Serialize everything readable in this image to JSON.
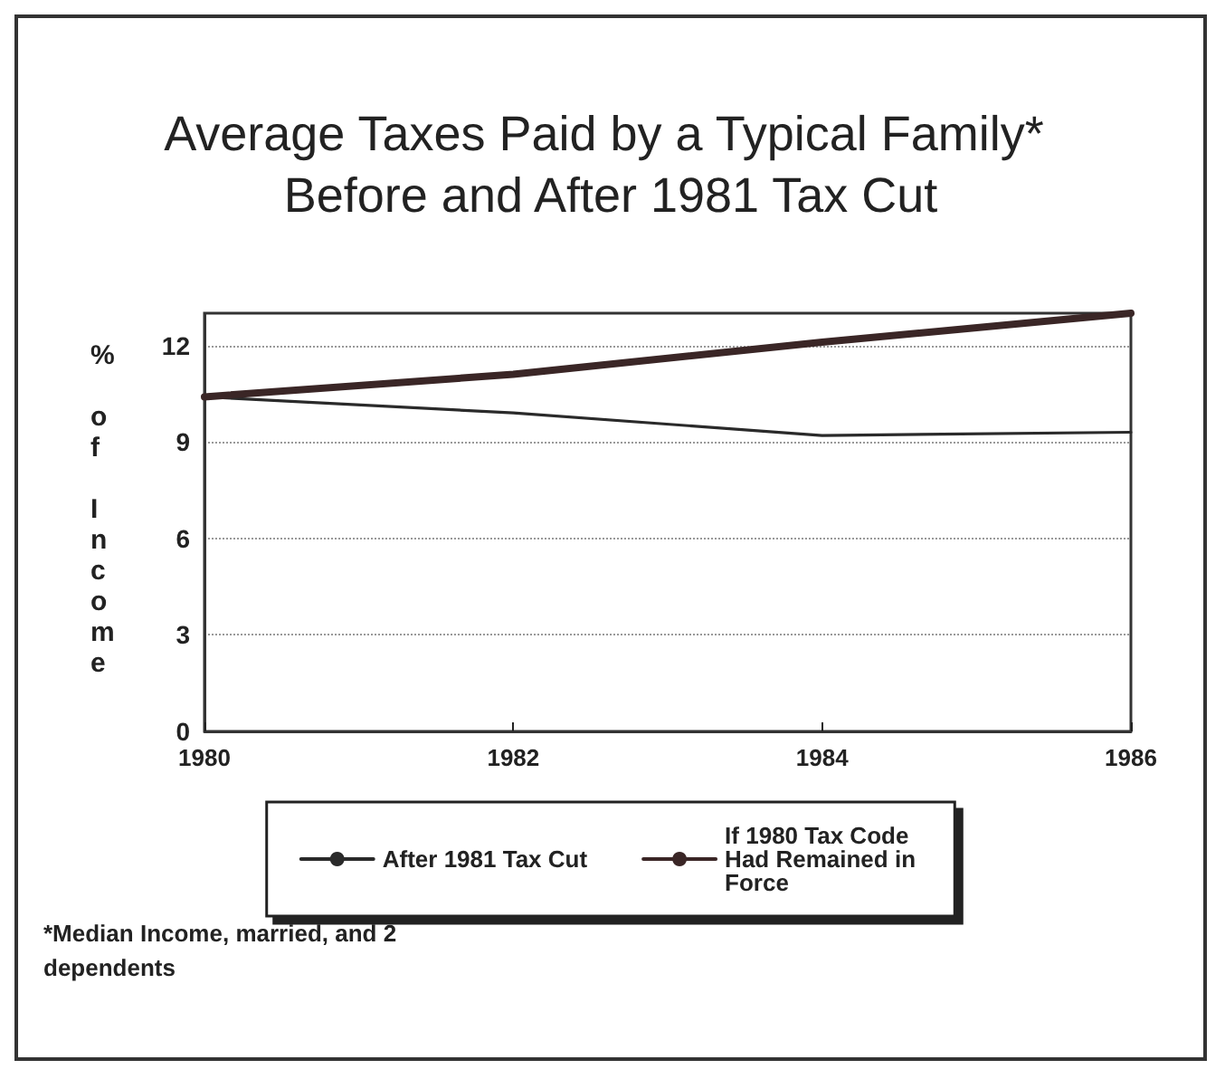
{
  "chart_data": {
    "type": "line",
    "title": "Average Taxes Paid by a Typical Family* Before and After 1981 Tax Cut",
    "ylabel": "% of Income",
    "x": [
      1980,
      1982,
      1984,
      1986
    ],
    "series": [
      {
        "name": "After 1981 Tax Cut",
        "color": "#2a2a2a",
        "values": [
          10.4,
          9.9,
          9.2,
          9.3
        ]
      },
      {
        "name": "If 1980 Tax Code Had Remained in Force",
        "color": "#3a2626",
        "values": [
          10.4,
          11.1,
          12.1,
          13.0
        ]
      }
    ],
    "xlim": [
      1980,
      1986
    ],
    "xticks": [
      1980,
      1982,
      1984,
      1986
    ],
    "ylim": [
      0,
      13
    ],
    "yticks": [
      0,
      3,
      6,
      9,
      12
    ],
    "grid": "y",
    "legend": "bottom",
    "marker": "none",
    "line_style": "solid",
    "annotations": [
      "*Median Income, married, and 2 dependents"
    ]
  }
}
